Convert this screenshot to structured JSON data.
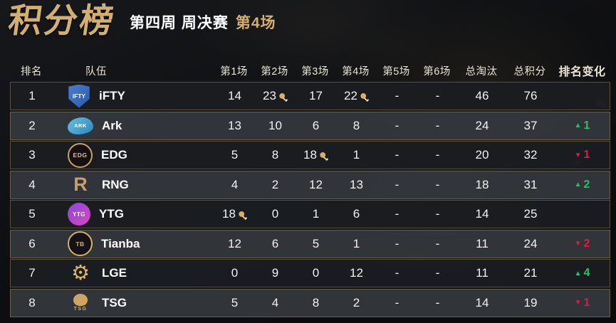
{
  "header": {
    "title": "积分榜",
    "subtitle_week": "第四周 周决赛",
    "subtitle_match": "第4场"
  },
  "colors": {
    "gold_accent": "#d4af74",
    "rank_up_green": "#25c268",
    "rank_down_red": "#e31844",
    "row_border_gold": "#bca26a",
    "row_dark": "#1b1d21",
    "row_light": "#34383d",
    "text": "#f2f2f2"
  },
  "icons": {
    "chicken": "chicken-dinner-icon",
    "up_glyph": "▲",
    "down_glyph": "▼"
  },
  "table": {
    "columns": [
      "排名",
      "队伍",
      "第1场",
      "第2场",
      "第3场",
      "第4场",
      "第5场",
      "第6场",
      "总淘汰",
      "总积分",
      "排名变化"
    ],
    "rows": [
      {
        "rank": "1",
        "team": "iFTY",
        "logo": {
          "icon": "ifty-team-logo",
          "kind": "shield",
          "text": "iFTY",
          "bg": "#4a7fd4",
          "bg2": "#2a57a5",
          "fg": "#ffffff"
        },
        "matches": [
          {
            "v": "14"
          },
          {
            "v": "23",
            "chicken": true
          },
          {
            "v": "17"
          },
          {
            "v": "22",
            "chicken": true
          },
          {
            "v": "-"
          },
          {
            "v": "-"
          }
        ],
        "total_elims": "46",
        "total_points": "76",
        "change": null
      },
      {
        "rank": "2",
        "team": "Ark",
        "logo": {
          "icon": "ark-team-logo",
          "kind": "blob",
          "text": "ARK",
          "bg": "#63c0e8",
          "bg2": "#2f86bb",
          "fg": "#ffffff"
        },
        "matches": [
          {
            "v": "13"
          },
          {
            "v": "10"
          },
          {
            "v": "6"
          },
          {
            "v": "8"
          },
          {
            "v": "-"
          },
          {
            "v": "-"
          }
        ],
        "total_elims": "24",
        "total_points": "37",
        "change": {
          "dir": "up",
          "value": "1"
        }
      },
      {
        "rank": "3",
        "team": "EDG",
        "logo": {
          "icon": "edg-team-logo",
          "kind": "ring",
          "text": "EDG",
          "bg": "#161013",
          "fg": "#d9c393",
          "border": "#c7a265"
        },
        "matches": [
          {
            "v": "5"
          },
          {
            "v": "8"
          },
          {
            "v": "18",
            "chicken": true
          },
          {
            "v": "1"
          },
          {
            "v": "-"
          },
          {
            "v": "-"
          }
        ],
        "total_elims": "20",
        "total_points": "32",
        "change": {
          "dir": "down",
          "value": "1"
        }
      },
      {
        "rank": "4",
        "team": "RNG",
        "logo": {
          "icon": "rng-team-logo",
          "kind": "mark",
          "text": "R",
          "fg": "#c49e72"
        },
        "matches": [
          {
            "v": "4"
          },
          {
            "v": "2"
          },
          {
            "v": "12"
          },
          {
            "v": "13"
          },
          {
            "v": "-"
          },
          {
            "v": "-"
          }
        ],
        "total_elims": "18",
        "total_points": "31",
        "change": {
          "dir": "up",
          "value": "2"
        }
      },
      {
        "rank": "5",
        "team": "YTG",
        "logo": {
          "icon": "ytg-team-logo",
          "kind": "circle",
          "text": "YTG",
          "bg": "#8a45e0",
          "bg2": "#d948b8",
          "fg": "#ffffff"
        },
        "matches": [
          {
            "v": "18",
            "chicken": true
          },
          {
            "v": "0"
          },
          {
            "v": "1"
          },
          {
            "v": "6"
          },
          {
            "v": "-"
          },
          {
            "v": "-"
          }
        ],
        "total_elims": "14",
        "total_points": "25",
        "change": null
      },
      {
        "rank": "6",
        "team": "Tianba",
        "logo": {
          "icon": "tianba-team-logo",
          "kind": "ring",
          "text": "TB",
          "bg": "#141216",
          "fg": "#d3b267",
          "border": "#d3b267"
        },
        "matches": [
          {
            "v": "12"
          },
          {
            "v": "6"
          },
          {
            "v": "5"
          },
          {
            "v": "1"
          },
          {
            "v": "-"
          },
          {
            "v": "-"
          }
        ],
        "total_elims": "11",
        "total_points": "24",
        "change": {
          "dir": "down",
          "value": "2"
        }
      },
      {
        "rank": "7",
        "team": "LGE",
        "logo": {
          "icon": "lge-team-logo",
          "kind": "gear",
          "glyph": "⚙",
          "text": "",
          "fg": "#d6b26c"
        },
        "matches": [
          {
            "v": "0"
          },
          {
            "v": "9"
          },
          {
            "v": "0"
          },
          {
            "v": "12"
          },
          {
            "v": "-"
          },
          {
            "v": "-"
          }
        ],
        "total_elims": "11",
        "total_points": "21",
        "change": {
          "dir": "up",
          "value": "4"
        }
      },
      {
        "rank": "8",
        "team": "TSG",
        "logo": {
          "icon": "tsg-team-logo",
          "kind": "crest",
          "text": "TSG",
          "bg": "#cfa661",
          "fg": "#d3b267"
        },
        "matches": [
          {
            "v": "5"
          },
          {
            "v": "4"
          },
          {
            "v": "8"
          },
          {
            "v": "2"
          },
          {
            "v": "-"
          },
          {
            "v": "-"
          }
        ],
        "total_elims": "14",
        "total_points": "19",
        "change": {
          "dir": "down",
          "value": "1"
        }
      }
    ]
  }
}
